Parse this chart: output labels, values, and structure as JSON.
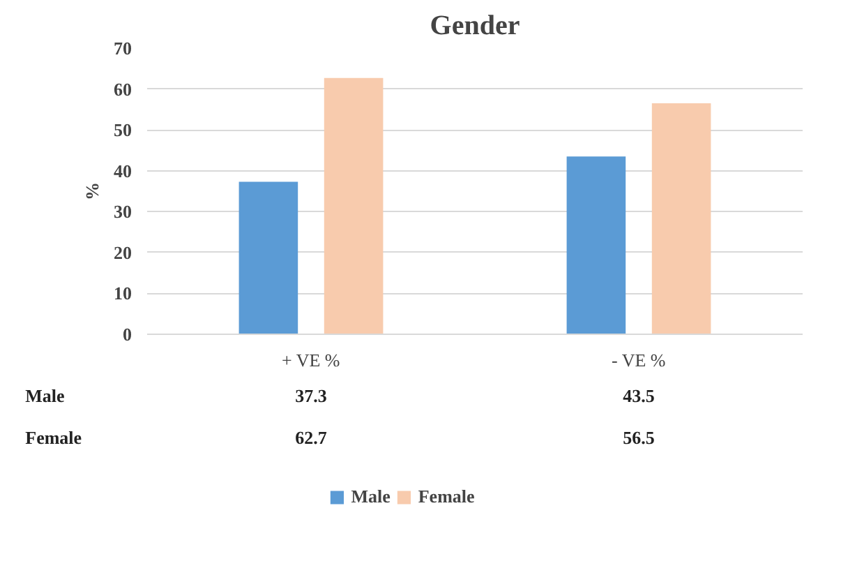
{
  "chart_data": {
    "type": "bar",
    "title": "Gender",
    "ylabel": "%",
    "categories": [
      "+ VE %",
      "- VE %"
    ],
    "series": [
      {
        "name": "Male",
        "color": "#5b9bd5",
        "values": [
          37.3,
          43.5
        ]
      },
      {
        "name": "Female",
        "color": "#f8cbad",
        "values": [
          62.7,
          56.5
        ]
      }
    ],
    "ylim": [
      0,
      70
    ],
    "yticks": [
      0,
      10,
      20,
      30,
      40,
      50,
      60,
      70
    ],
    "grid": "y",
    "legend": "bottom",
    "data_labels": true
  }
}
